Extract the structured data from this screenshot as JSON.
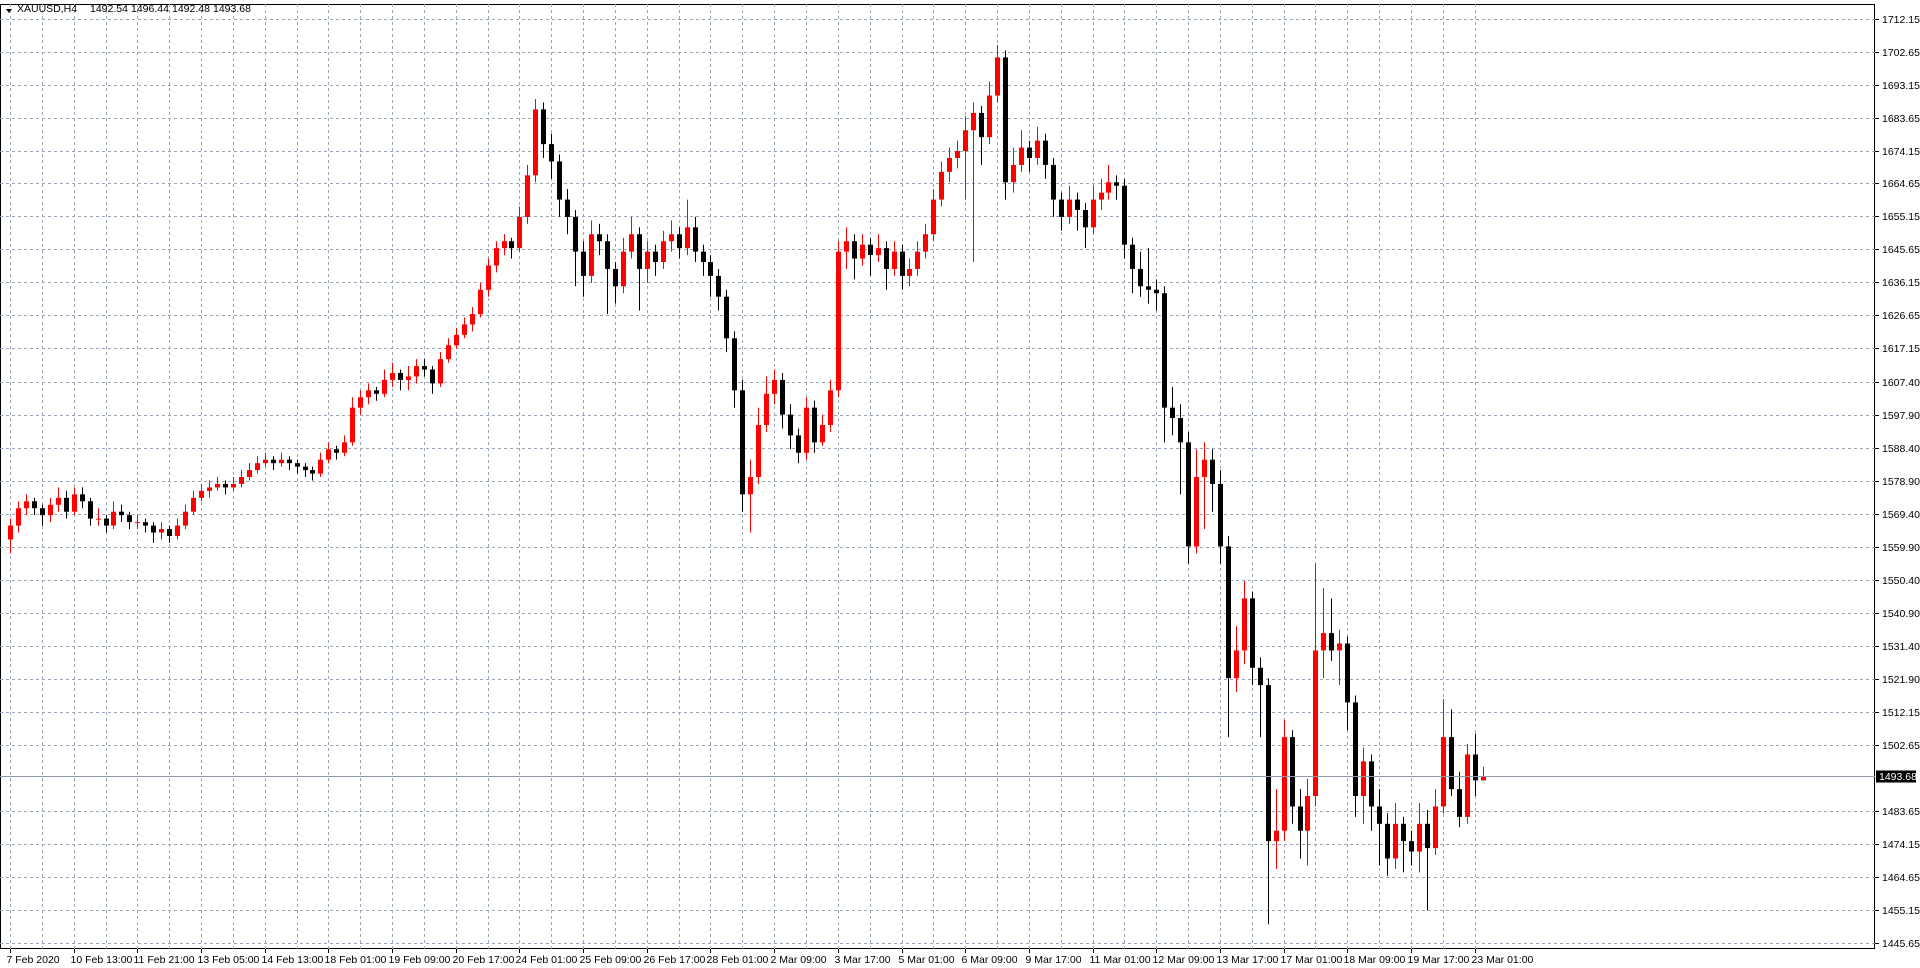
{
  "chart_data": {
    "type": "candlestick",
    "symbol": "XAUUSD,H4",
    "up_color": "#ff0000",
    "down_color": "#000000",
    "grid": true,
    "ylim": [
      1443.9,
      1716.4
    ],
    "yticks": [
      1712.15,
      1702.65,
      1693.15,
      1683.65,
      1674.15,
      1664.65,
      1655.15,
      1645.65,
      1636.15,
      1626.65,
      1617.15,
      {
        "value": 1607.4,
        "label": "1607.40"
      },
      {
        "value": 1597.9,
        "label": "1597.90"
      },
      {
        "value": 1588.4,
        "label": "1588.40"
      },
      {
        "value": 1578.9,
        "label": "1578.90"
      },
      {
        "value": 1569.4,
        "label": "1569.40"
      },
      {
        "value": 1559.9,
        "label": "1559.90"
      },
      {
        "value": 1550.4,
        "label": "1550.40"
      },
      {
        "value": 1540.9,
        "label": "1540.90"
      },
      {
        "value": 1531.4,
        "label": "1531.40"
      },
      {
        "value": 1521.9,
        "label": "1521.90"
      },
      1512.15,
      1502.65,
      1483.65,
      1474.15,
      1464.65,
      1455.15,
      1445.65
    ],
    "categories": [
      "7 Feb 2020",
      null,
      null,
      null,
      null,
      null,
      null,
      null,
      "10 Feb 13:00",
      null,
      null,
      null,
      null,
      null,
      null,
      null,
      "11 Feb 21:00",
      null,
      null,
      null,
      null,
      null,
      null,
      null,
      "13 Feb 05:00",
      null,
      null,
      null,
      null,
      null,
      null,
      null,
      "14 Feb 13:00",
      null,
      null,
      null,
      null,
      null,
      null,
      null,
      "18 Feb 01:00",
      null,
      null,
      null,
      null,
      null,
      null,
      null,
      "19 Feb 09:00",
      null,
      null,
      null,
      null,
      null,
      null,
      null,
      "20 Feb 17:00",
      null,
      null,
      null,
      null,
      null,
      null,
      null,
      "24 Feb 01:00",
      null,
      null,
      null,
      null,
      null,
      null,
      null,
      "25 Feb 09:00",
      null,
      null,
      null,
      null,
      null,
      null,
      null,
      "26 Feb 17:00",
      null,
      null,
      null,
      null,
      null,
      null,
      null,
      "28 Feb 01:00",
      null,
      null,
      null,
      null,
      null,
      null,
      null,
      "2 Mar 09:00",
      null,
      null,
      null,
      null,
      null,
      null,
      null,
      "3 Mar 17:00",
      null,
      null,
      null,
      null,
      null,
      null,
      null,
      "5 Mar 01:00",
      null,
      null,
      null,
      null,
      null,
      null,
      null,
      "6 Mar 09:00",
      null,
      null,
      null,
      null,
      null,
      null,
      null,
      "9 Mar 17:00",
      null,
      null,
      null,
      null,
      null,
      null,
      null,
      "11 Mar 01:00",
      null,
      null,
      null,
      null,
      null,
      null,
      null,
      "12 Mar 09:00",
      null,
      null,
      null,
      null,
      null,
      null,
      null,
      "13 Mar 17:00",
      null,
      null,
      null,
      null,
      null,
      null,
      null,
      "17 Mar 01:00",
      null,
      null,
      null,
      null,
      null,
      null,
      null,
      "18 Mar 09:00",
      null,
      null,
      null,
      null,
      null,
      null,
      null,
      "19 Mar 17:00",
      null,
      null,
      null,
      null,
      null,
      null,
      null,
      "23 Mar 01:00",
      null
    ],
    "ohlc": [
      [
        1562,
        1568,
        1558,
        1566
      ],
      [
        1566,
        1573,
        1564,
        1571
      ],
      [
        1571,
        1575,
        1569,
        1573
      ],
      [
        1573,
        1574,
        1569,
        1571
      ],
      [
        1571,
        1572,
        1566,
        1569
      ],
      [
        1569,
        1574,
        1567,
        1572
      ],
      [
        1572,
        1577,
        1570,
        1574
      ],
      [
        1574,
        1576,
        1568,
        1570
      ],
      [
        1570,
        1577,
        1569,
        1575
      ],
      [
        1575,
        1577,
        1571,
        1573
      ],
      [
        1573,
        1574,
        1566,
        1568
      ],
      [
        1568,
        1571,
        1566,
        1568
      ],
      [
        1568,
        1569,
        1564,
        1566
      ],
      [
        1566,
        1573,
        1565,
        1570
      ],
      [
        1570,
        1572,
        1567,
        1569
      ],
      [
        1569,
        1570,
        1565,
        1567
      ],
      [
        1567,
        1569,
        1565,
        1567
      ],
      [
        1567,
        1568,
        1564,
        1566
      ],
      [
        1566,
        1567,
        1561,
        1564
      ],
      [
        1564,
        1567,
        1562,
        1565
      ],
      [
        1565,
        1566,
        1561,
        1563
      ],
      [
        1563,
        1568,
        1562,
        1566
      ],
      [
        1566,
        1572,
        1565,
        1570
      ],
      [
        1570,
        1576,
        1569,
        1574
      ],
      [
        1574,
        1578,
        1573,
        1576
      ],
      [
        1576,
        1579,
        1574,
        1577
      ],
      [
        1577,
        1580,
        1576,
        1578
      ],
      [
        1578,
        1579,
        1575,
        1577
      ],
      [
        1577,
        1580,
        1576,
        1578
      ],
      [
        1578,
        1582,
        1577,
        1580
      ],
      [
        1580,
        1584,
        1579,
        1582
      ],
      [
        1582,
        1586,
        1581,
        1584
      ],
      [
        1584,
        1587,
        1583,
        1585
      ],
      [
        1585,
        1586,
        1582,
        1584
      ],
      [
        1584,
        1587,
        1583,
        1585
      ],
      [
        1585,
        1586,
        1582,
        1584
      ],
      [
        1584,
        1585,
        1581,
        1583
      ],
      [
        1583,
        1584,
        1580,
        1582
      ],
      [
        1582,
        1583,
        1579,
        1581
      ],
      [
        1581,
        1587,
        1580,
        1585
      ],
      [
        1585,
        1590,
        1584,
        1588
      ],
      [
        1588,
        1589,
        1585,
        1587
      ],
      [
        1587,
        1592,
        1586,
        1590
      ],
      [
        1590,
        1603,
        1589,
        1600
      ],
      [
        1600,
        1605,
        1598,
        1603
      ],
      [
        1603,
        1607,
        1601,
        1605
      ],
      [
        1605,
        1606,
        1602,
        1604
      ],
      [
        1604,
        1611,
        1603,
        1608
      ],
      [
        1608,
        1613,
        1606,
        1610
      ],
      [
        1610,
        1611,
        1605,
        1608
      ],
      [
        1608,
        1612,
        1605,
        1609
      ],
      [
        1609,
        1614,
        1607,
        1612
      ],
      [
        1612,
        1614,
        1609,
        1611
      ],
      [
        1611,
        1612,
        1604,
        1607
      ],
      [
        1607,
        1616,
        1606,
        1614
      ],
      [
        1614,
        1620,
        1613,
        1618
      ],
      [
        1618,
        1623,
        1617,
        1621
      ],
      [
        1621,
        1626,
        1620,
        1624
      ],
      [
        1624,
        1629,
        1622,
        1627
      ],
      [
        1627,
        1636,
        1626,
        1634
      ],
      [
        1634,
        1643,
        1632,
        1641
      ],
      [
        1641,
        1648,
        1639,
        1646
      ],
      [
        1646,
        1650,
        1644,
        1648
      ],
      [
        1648,
        1649,
        1643,
        1646
      ],
      [
        1646,
        1658,
        1645,
        1655
      ],
      [
        1655,
        1670,
        1653,
        1667
      ],
      [
        1667,
        1689,
        1665,
        1686
      ],
      [
        1686,
        1688,
        1672,
        1676
      ],
      [
        1676,
        1679,
        1666,
        1671
      ],
      [
        1671,
        1673,
        1655,
        1660
      ],
      [
        1660,
        1663,
        1650,
        1655
      ],
      [
        1655,
        1657,
        1635,
        1645
      ],
      [
        1645,
        1648,
        1632,
        1638
      ],
      [
        1638,
        1654,
        1636,
        1650
      ],
      [
        1650,
        1653,
        1644,
        1648
      ],
      [
        1648,
        1650,
        1627,
        1640
      ],
      [
        1640,
        1642,
        1630,
        1635
      ],
      [
        1635,
        1649,
        1633,
        1645
      ],
      [
        1645,
        1655,
        1643,
        1650
      ],
      [
        1650,
        1652,
        1628,
        1640
      ],
      [
        1640,
        1648,
        1636,
        1645
      ],
      [
        1645,
        1647,
        1638,
        1642
      ],
      [
        1642,
        1651,
        1640,
        1648
      ],
      [
        1648,
        1654,
        1645,
        1650
      ],
      [
        1650,
        1652,
        1643,
        1646
      ],
      [
        1646,
        1660,
        1644,
        1652
      ],
      [
        1652,
        1655,
        1642,
        1645
      ],
      [
        1645,
        1647,
        1638,
        1642
      ],
      [
        1642,
        1644,
        1632,
        1638
      ],
      [
        1638,
        1640,
        1628,
        1632
      ],
      [
        1632,
        1634,
        1616,
        1620
      ],
      [
        1620,
        1622,
        1600,
        1605
      ],
      [
        1605,
        1608,
        1570,
        1575
      ],
      [
        1575,
        1585,
        1564,
        1580
      ],
      [
        1580,
        1600,
        1578,
        1595
      ],
      [
        1595,
        1609,
        1593,
        1604
      ],
      [
        1604,
        1611,
        1601,
        1608
      ],
      [
        1608,
        1610,
        1594,
        1598
      ],
      [
        1598,
        1601,
        1588,
        1592
      ],
      [
        1592,
        1594,
        1584,
        1587
      ],
      [
        1587,
        1603,
        1585,
        1600
      ],
      [
        1600,
        1602,
        1587,
        1590
      ],
      [
        1590,
        1598,
        1589,
        1595
      ],
      [
        1595,
        1608,
        1593,
        1605
      ],
      [
        1605,
        1648,
        1603,
        1645
      ],
      [
        1645,
        1652,
        1640,
        1648
      ],
      [
        1648,
        1650,
        1637,
        1643
      ],
      [
        1643,
        1650,
        1641,
        1647
      ],
      [
        1647,
        1649,
        1638,
        1644
      ],
      [
        1644,
        1650,
        1642,
        1646
      ],
      [
        1646,
        1648,
        1634,
        1640
      ],
      [
        1640,
        1648,
        1638,
        1645
      ],
      [
        1645,
        1647,
        1634,
        1638
      ],
      [
        1638,
        1643,
        1635,
        1640
      ],
      [
        1640,
        1648,
        1638,
        1645
      ],
      [
        1645,
        1653,
        1643,
        1650
      ],
      [
        1650,
        1663,
        1648,
        1660
      ],
      [
        1660,
        1671,
        1658,
        1668
      ],
      [
        1668,
        1675,
        1665,
        1672
      ],
      [
        1672,
        1677,
        1669,
        1674
      ],
      [
        1674,
        1684,
        1660,
        1680
      ],
      [
        1680,
        1688,
        1642,
        1685
      ],
      [
        1685,
        1687,
        1670,
        1678
      ],
      [
        1678,
        1694,
        1676,
        1690
      ],
      [
        1690,
        1704.6,
        1688,
        1701
      ],
      [
        1701,
        1703,
        1660,
        1665
      ],
      [
        1665,
        1675,
        1662,
        1670
      ],
      [
        1670,
        1680,
        1668,
        1675
      ],
      [
        1675,
        1677,
        1668,
        1672
      ],
      [
        1672,
        1681,
        1670,
        1677
      ],
      [
        1677,
        1679,
        1666,
        1670
      ],
      [
        1670,
        1672,
        1655,
        1660
      ],
      [
        1660,
        1662,
        1651,
        1655
      ],
      [
        1655,
        1664,
        1653,
        1660
      ],
      [
        1660,
        1662,
        1651,
        1657
      ],
      [
        1657,
        1659,
        1646,
        1652
      ],
      [
        1652,
        1664,
        1650,
        1660
      ],
      [
        1660,
        1666,
        1657,
        1662
      ],
      [
        1662,
        1670,
        1660,
        1665
      ],
      [
        1665,
        1667,
        1660,
        1664
      ],
      [
        1664,
        1666,
        1643,
        1647
      ],
      [
        1647,
        1649,
        1633,
        1640
      ],
      [
        1640,
        1645,
        1632,
        1635
      ],
      [
        1635,
        1646,
        1630,
        1634
      ],
      [
        1634,
        1637,
        1628,
        1633
      ],
      [
        1633,
        1635,
        1590,
        1600
      ],
      [
        1600,
        1606,
        1592,
        1597
      ],
      [
        1597,
        1601,
        1575,
        1590
      ],
      [
        1590,
        1593,
        1555,
        1560
      ],
      [
        1560,
        1588,
        1558,
        1580
      ],
      [
        1580,
        1590,
        1565,
        1585
      ],
      [
        1585,
        1588,
        1570,
        1578
      ],
      [
        1578,
        1582,
        1555,
        1560
      ],
      [
        1560,
        1563,
        1505,
        1522
      ],
      [
        1522,
        1537,
        1518,
        1530
      ],
      [
        1530,
        1550,
        1526,
        1545
      ],
      [
        1545,
        1547,
        1520,
        1525
      ],
      [
        1525,
        1528,
        1505,
        1520
      ],
      [
        1520,
        1522,
        1451,
        1475
      ],
      [
        1475,
        1490,
        1467,
        1478
      ],
      [
        1478,
        1510,
        1475,
        1505
      ],
      [
        1505,
        1507,
        1480,
        1485
      ],
      [
        1485,
        1490,
        1470,
        1478
      ],
      [
        1478,
        1493,
        1468,
        1488
      ],
      [
        1488,
        1555,
        1485,
        1530
      ],
      [
        1530,
        1548,
        1522,
        1535
      ],
      [
        1535,
        1545,
        1527,
        1530
      ],
      [
        1530,
        1536,
        1520,
        1532
      ],
      [
        1532,
        1534,
        1507,
        1515
      ],
      [
        1515,
        1517,
        1482,
        1488
      ],
      [
        1488,
        1502,
        1480,
        1498
      ],
      [
        1498,
        1500,
        1478,
        1485
      ],
      [
        1485,
        1490,
        1468,
        1480
      ],
      [
        1480,
        1483,
        1465,
        1470
      ],
      [
        1470,
        1486,
        1467,
        1480
      ],
      [
        1480,
        1482,
        1466,
        1475
      ],
      [
        1475,
        1478,
        1468,
        1472
      ],
      [
        1472,
        1486,
        1466,
        1480
      ],
      [
        1480,
        1484,
        1455,
        1473
      ],
      [
        1473,
        1490,
        1471,
        1485
      ],
      [
        1485,
        1516,
        1483,
        1505
      ],
      [
        1505,
        1513,
        1488,
        1490
      ],
      [
        1490,
        1495,
        1479,
        1482
      ],
      [
        1482,
        1503,
        1480,
        1500
      ],
      [
        1500,
        1506,
        1488,
        1492.54
      ],
      [
        1492.54,
        1496.44,
        1492.48,
        1493.68
      ]
    ]
  }
}
